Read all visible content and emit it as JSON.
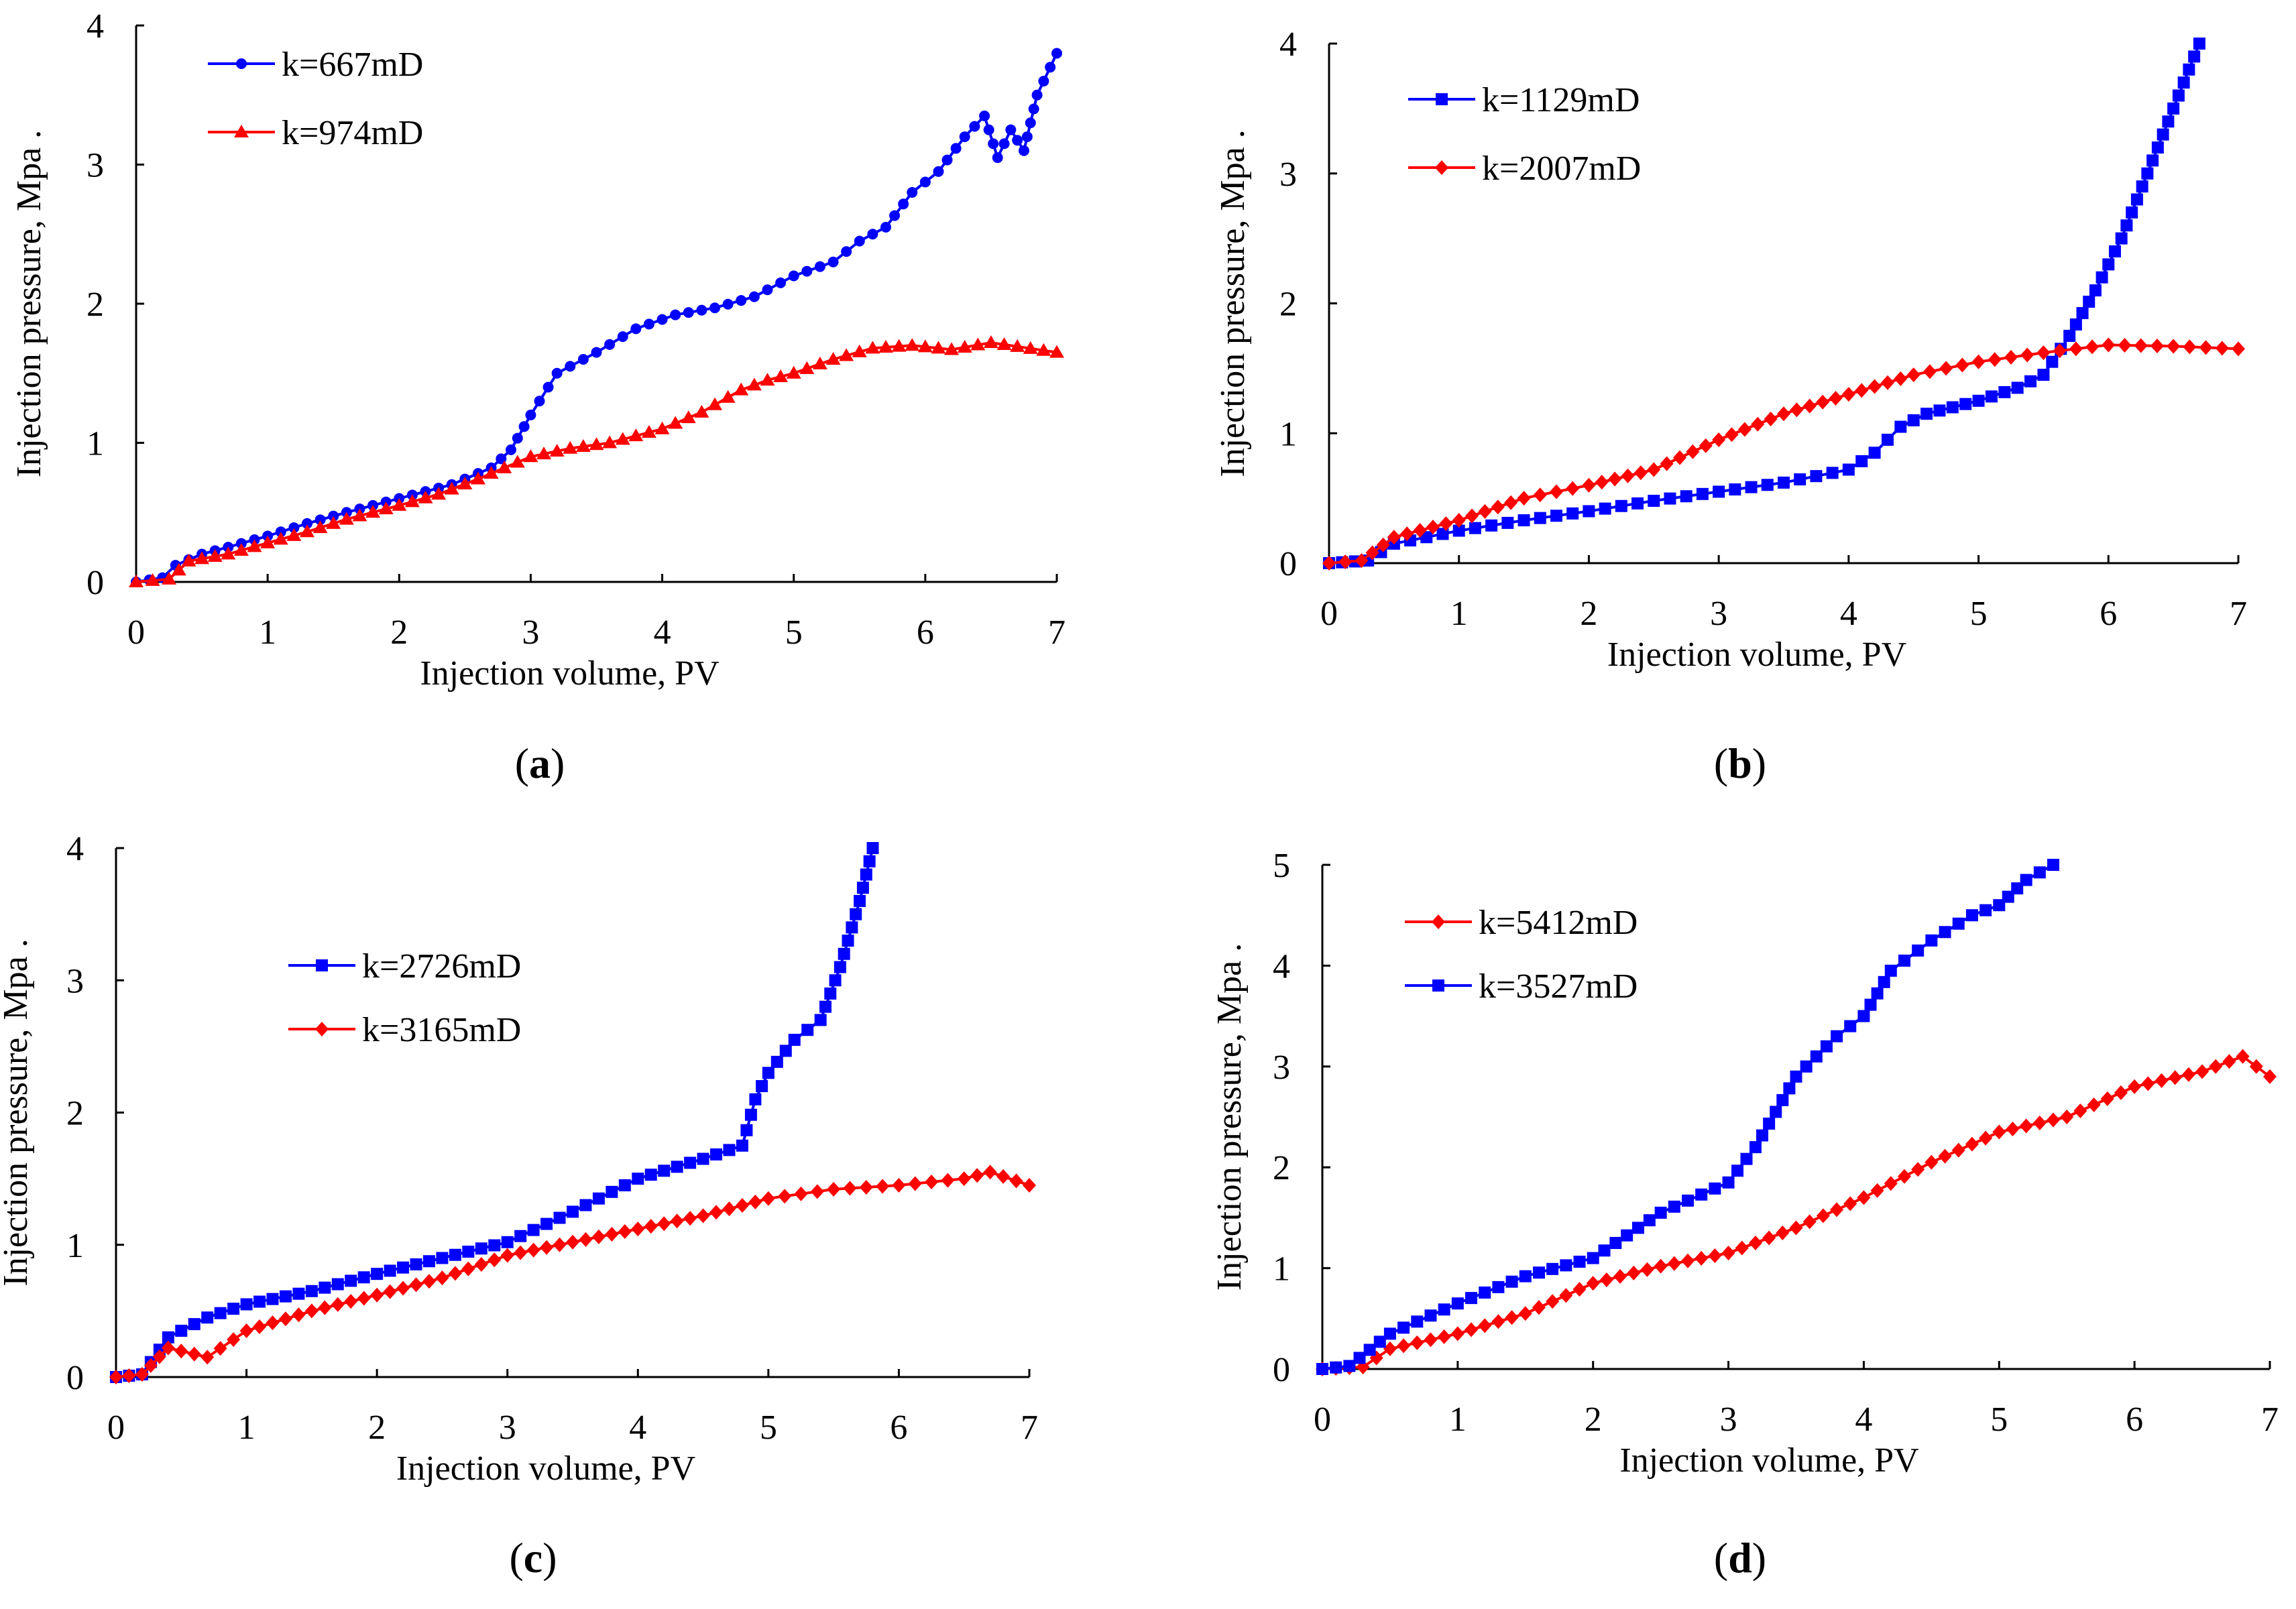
{
  "chart_data": [
    {
      "type": "line",
      "panel": "a",
      "caption_letter": "a",
      "xlabel": "Injection volume, PV",
      "ylabel": "Injection pressure, Mpa .",
      "xlim": [
        0,
        7
      ],
      "ylim": [
        0,
        4
      ],
      "xticks": [
        "0",
        "1",
        "2",
        "3",
        "4",
        "5",
        "6",
        "7"
      ],
      "yticks": [
        "0",
        "1",
        "2",
        "3",
        "4"
      ],
      "legend_position": "top-left",
      "series": [
        {
          "name": "k=667mD",
          "color": "#0000ff",
          "marker": "circle",
          "points": [
            [
              0,
              0
            ],
            [
              0.2,
              0.03
            ],
            [
              0.3,
              0.12
            ],
            [
              0.5,
              0.2
            ],
            [
              0.7,
              0.25
            ],
            [
              1,
              0.33
            ],
            [
              1.3,
              0.42
            ],
            [
              1.6,
              0.5
            ],
            [
              2,
              0.6
            ],
            [
              2.4,
              0.7
            ],
            [
              2.7,
              0.82
            ],
            [
              2.85,
              0.95
            ],
            [
              3,
              1.2
            ],
            [
              3.2,
              1.5
            ],
            [
              3.5,
              1.65
            ],
            [
              3.8,
              1.82
            ],
            [
              4.1,
              1.92
            ],
            [
              4.4,
              1.97
            ],
            [
              4.7,
              2.05
            ],
            [
              5,
              2.2
            ],
            [
              5.3,
              2.3
            ],
            [
              5.5,
              2.45
            ],
            [
              5.7,
              2.55
            ],
            [
              5.9,
              2.8
            ],
            [
              6.1,
              2.95
            ],
            [
              6.3,
              3.2
            ],
            [
              6.45,
              3.35
            ],
            [
              6.55,
              3.05
            ],
            [
              6.65,
              3.25
            ],
            [
              6.75,
              3.1
            ],
            [
              6.85,
              3.5
            ],
            [
              7,
              3.8
            ]
          ]
        },
        {
          "name": "k=974mD",
          "color": "#ff0000",
          "marker": "triangle",
          "points": [
            [
              0,
              0
            ],
            [
              0.25,
              0.02
            ],
            [
              0.4,
              0.15
            ],
            [
              0.7,
              0.2
            ],
            [
              1,
              0.28
            ],
            [
              1.3,
              0.36
            ],
            [
              1.6,
              0.45
            ],
            [
              2,
              0.55
            ],
            [
              2.3,
              0.63
            ],
            [
              2.6,
              0.74
            ],
            [
              3,
              0.9
            ],
            [
              3.3,
              0.96
            ],
            [
              3.6,
              1
            ],
            [
              4,
              1.1
            ],
            [
              4.3,
              1.22
            ],
            [
              4.6,
              1.38
            ],
            [
              4.8,
              1.45
            ],
            [
              5,
              1.5
            ],
            [
              5.3,
              1.6
            ],
            [
              5.6,
              1.68
            ],
            [
              5.9,
              1.7
            ],
            [
              6.2,
              1.67
            ],
            [
              6.5,
              1.72
            ],
            [
              7,
              1.65
            ]
          ]
        }
      ]
    },
    {
      "type": "line",
      "panel": "b",
      "caption_letter": "b",
      "xlabel": "Injection volume, PV",
      "ylabel": "Injection pressure, Mpa .",
      "xlim": [
        0,
        7
      ],
      "ylim": [
        0,
        4
      ],
      "xticks": [
        "0",
        "1",
        "2",
        "3",
        "4",
        "5",
        "6",
        "7"
      ],
      "yticks": [
        "0",
        "1",
        "2",
        "3",
        "4"
      ],
      "legend_position": "top-left",
      "series": [
        {
          "name": "k=1129mD",
          "color": "#0000ff",
          "marker": "square",
          "points": [
            [
              0,
              0
            ],
            [
              0.3,
              0.02
            ],
            [
              0.5,
              0.15
            ],
            [
              1,
              0.25
            ],
            [
              1.5,
              0.33
            ],
            [
              2,
              0.4
            ],
            [
              2.5,
              0.48
            ],
            [
              3,
              0.55
            ],
            [
              3.5,
              0.62
            ],
            [
              4,
              0.72
            ],
            [
              4.2,
              0.85
            ],
            [
              4.4,
              1.05
            ],
            [
              4.6,
              1.15
            ],
            [
              5,
              1.25
            ],
            [
              5.3,
              1.35
            ],
            [
              5.5,
              1.45
            ],
            [
              5.7,
              1.75
            ],
            [
              5.9,
              2.1
            ],
            [
              6.1,
              2.5
            ],
            [
              6.3,
              3
            ],
            [
              6.5,
              3.5
            ],
            [
              6.7,
              4
            ]
          ]
        },
        {
          "name": "k=2007mD",
          "color": "#ff0000",
          "marker": "diamond",
          "points": [
            [
              0,
              0
            ],
            [
              0.25,
              0.02
            ],
            [
              0.5,
              0.2
            ],
            [
              1,
              0.33
            ],
            [
              1.5,
              0.5
            ],
            [
              2,
              0.6
            ],
            [
              2.5,
              0.72
            ],
            [
              3,
              0.95
            ],
            [
              3.5,
              1.15
            ],
            [
              4,
              1.3
            ],
            [
              4.5,
              1.45
            ],
            [
              5,
              1.55
            ],
            [
              5.5,
              1.62
            ],
            [
              6,
              1.68
            ],
            [
              6.5,
              1.67
            ],
            [
              7,
              1.65
            ]
          ]
        }
      ]
    },
    {
      "type": "line",
      "panel": "c",
      "caption_letter": "c",
      "xlabel": "Injection volume, PV",
      "ylabel": "Injection pressure, Mpa .",
      "xlim": [
        0,
        7
      ],
      "ylim": [
        0,
        4
      ],
      "xticks": [
        "0",
        "1",
        "2",
        "3",
        "4",
        "5",
        "6",
        "7"
      ],
      "yticks": [
        "0",
        "1",
        "2",
        "3",
        "4"
      ],
      "legend_position": "center-left",
      "series": [
        {
          "name": "k=2726mD",
          "color": "#0000ff",
          "marker": "square",
          "points": [
            [
              0,
              0
            ],
            [
              0.2,
              0.02
            ],
            [
              0.4,
              0.3
            ],
            [
              0.7,
              0.45
            ],
            [
              1,
              0.55
            ],
            [
              1.5,
              0.65
            ],
            [
              2,
              0.78
            ],
            [
              2.5,
              0.9
            ],
            [
              3,
              1.02
            ],
            [
              3.5,
              1.25
            ],
            [
              4,
              1.5
            ],
            [
              4.5,
              1.65
            ],
            [
              4.8,
              1.75
            ],
            [
              4.9,
              2.1
            ],
            [
              5,
              2.3
            ],
            [
              5.2,
              2.55
            ],
            [
              5.4,
              2.7
            ],
            [
              5.55,
              3.1
            ],
            [
              5.7,
              3.6
            ],
            [
              5.8,
              4
            ]
          ]
        },
        {
          "name": "k=3165mD",
          "color": "#ff0000",
          "marker": "diamond",
          "points": [
            [
              0,
              0
            ],
            [
              0.2,
              0.02
            ],
            [
              0.4,
              0.22
            ],
            [
              0.7,
              0.15
            ],
            [
              1,
              0.35
            ],
            [
              1.5,
              0.5
            ],
            [
              2,
              0.62
            ],
            [
              2.5,
              0.75
            ],
            [
              3,
              0.92
            ],
            [
              3.5,
              1.02
            ],
            [
              4,
              1.12
            ],
            [
              4.5,
              1.22
            ],
            [
              5,
              1.35
            ],
            [
              5.5,
              1.42
            ],
            [
              6,
              1.45
            ],
            [
              6.5,
              1.5
            ],
            [
              6.7,
              1.55
            ],
            [
              7,
              1.45
            ]
          ]
        }
      ]
    },
    {
      "type": "line",
      "panel": "d",
      "caption_letter": "d",
      "xlabel": "Injection volume, PV",
      "ylabel": "Injection pressure, Mpa .",
      "xlim": [
        0,
        7
      ],
      "ylim": [
        0,
        5
      ],
      "xticks": [
        "0",
        "1",
        "2",
        "3",
        "4",
        "5",
        "6",
        "7"
      ],
      "yticks": [
        "0",
        "1",
        "2",
        "3",
        "4",
        "5"
      ],
      "legend_position": "top-left",
      "series": [
        {
          "name": "k=5412mD",
          "color": "#ff0000",
          "marker": "diamond",
          "points": [
            [
              0,
              0
            ],
            [
              0.3,
              0.02
            ],
            [
              0.5,
              0.2
            ],
            [
              1,
              0.35
            ],
            [
              1.5,
              0.55
            ],
            [
              2,
              0.85
            ],
            [
              2.5,
              1.02
            ],
            [
              3,
              1.15
            ],
            [
              3.5,
              1.4
            ],
            [
              4,
              1.7
            ],
            [
              4.5,
              2.05
            ],
            [
              5,
              2.35
            ],
            [
              5.5,
              2.5
            ],
            [
              6,
              2.8
            ],
            [
              6.5,
              2.95
            ],
            [
              6.8,
              3.1
            ],
            [
              7,
              2.9
            ]
          ]
        },
        {
          "name": "k=3527mD",
          "color": "#0000ff",
          "marker": "square",
          "points": [
            [
              0,
              0
            ],
            [
              0.2,
              0.03
            ],
            [
              0.5,
              0.35
            ],
            [
              1,
              0.65
            ],
            [
              1.5,
              0.92
            ],
            [
              2,
              1.1
            ],
            [
              2.5,
              1.55
            ],
            [
              3,
              1.85
            ],
            [
              3.2,
              2.2
            ],
            [
              3.5,
              2.9
            ],
            [
              3.8,
              3.3
            ],
            [
              4,
              3.5
            ],
            [
              4.2,
              3.95
            ],
            [
              4.5,
              4.25
            ],
            [
              4.8,
              4.5
            ],
            [
              5,
              4.6
            ],
            [
              5.2,
              4.85
            ],
            [
              5.4,
              5
            ]
          ]
        }
      ]
    }
  ]
}
